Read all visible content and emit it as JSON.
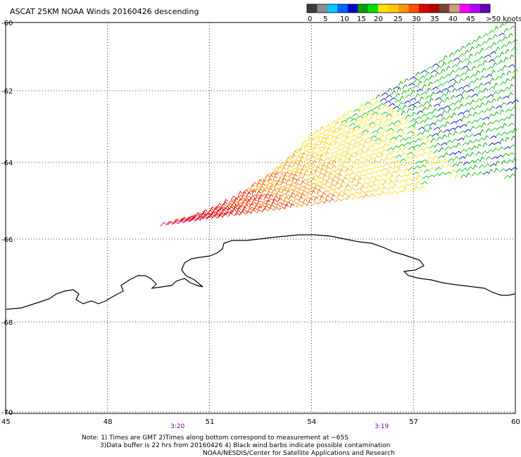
{
  "title": "ASCAT 25KM NOAA Winds 20160426 descending",
  "legend": {
    "colors": [
      "#3c3c3c",
      "#8c8c8c",
      "#00c8ff",
      "#0064ff",
      "#0000c8",
      "#00a000",
      "#00e000",
      "#ffe000",
      "#ffc800",
      "#ff9600",
      "#ff5000",
      "#e00000",
      "#b40000",
      "#784632",
      "#c8a078",
      "#ff00ff",
      "#b400ff",
      "#6400b4"
    ],
    "labels": [
      "0",
      "5",
      "10",
      "15",
      "20",
      "25",
      "30",
      "35",
      "40",
      "45",
      ">50 knots"
    ]
  },
  "lat_labels": [
    "-60",
    "-62",
    "-64",
    "-66",
    "-68",
    "-70"
  ],
  "lon_labels": [
    "45",
    "48",
    "51",
    "54",
    "57",
    "60"
  ],
  "time_labels": [
    {
      "text": "3:20",
      "color": "#8000a0"
    },
    {
      "text": "3:19",
      "color": "#8000a0"
    }
  ],
  "notes": {
    "line1": "Note: 1) Times are GMT 2)Times along bottom correspond to measurement at −65S",
    "line2": "3)Data buffer is 22 hrs from 20160426 4) Black wind barbs indicate possible contamination",
    "line3": "NOAA/NESDIS/Center for Satellite Applications and Research"
  },
  "map": {
    "lat_range": [
      -70,
      -60
    ],
    "lon_range": [
      45,
      60
    ],
    "grid": "dotted",
    "swath_colors": [
      "#8c3c1e",
      "#e00000",
      "#ff5000",
      "#ff9600",
      "#ffc800",
      "#ffe000",
      "#00c800",
      "#00a000",
      "#0000c8"
    ]
  }
}
